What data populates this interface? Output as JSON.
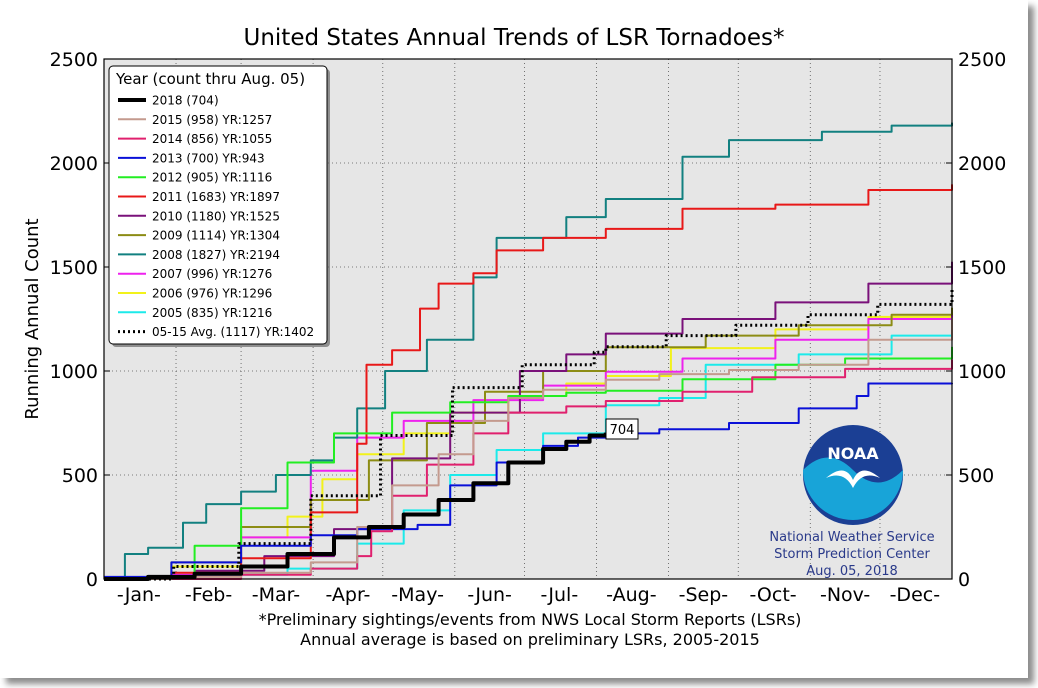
{
  "chart_data": {
    "type": "line",
    "title": "United States Annual Trends of LSR Tornadoes*",
    "ylabel": "Running Annual Count",
    "xlabel": "",
    "ylim": [
      0,
      2500
    ],
    "yticks": [
      0,
      500,
      1000,
      1500,
      2000,
      2500
    ],
    "x_unit": "day of year",
    "xlim": [
      1,
      366
    ],
    "month_ticks": [
      {
        "label": "-Jan-",
        "day": 16
      },
      {
        "label": "-Feb-",
        "day": 46
      },
      {
        "label": "-Mar-",
        "day": 75
      },
      {
        "label": "-Apr-",
        "day": 106
      },
      {
        "label": "-May-",
        "day": 136
      },
      {
        "label": "-Jun-",
        "day": 167
      },
      {
        "label": "-Jul-",
        "day": 197
      },
      {
        "label": "-Aug-",
        "day": 228
      },
      {
        "label": "-Sep-",
        "day": 259
      },
      {
        "label": "-Oct-",
        "day": 289
      },
      {
        "label": "-Nov-",
        "day": 320
      },
      {
        "label": "-Dec-",
        "day": 350
      }
    ],
    "month_gridlines_day": [
      32,
      60,
      91,
      121,
      152,
      182,
      213,
      244,
      274,
      305,
      335
    ],
    "grid": true,
    "legend": {
      "title": "Year (count thru Aug. 05)",
      "placement": "top-left"
    },
    "series": [
      {
        "name": "2018 (704)",
        "color": "#000000",
        "dash": "",
        "width": 4,
        "points": [
          [
            1,
            0
          ],
          [
            20,
            10
          ],
          [
            40,
            25
          ],
          [
            60,
            60
          ],
          [
            80,
            120
          ],
          [
            100,
            200
          ],
          [
            115,
            250
          ],
          [
            130,
            310
          ],
          [
            145,
            380
          ],
          [
            160,
            460
          ],
          [
            175,
            560
          ],
          [
            190,
            625
          ],
          [
            200,
            660
          ],
          [
            210,
            690
          ],
          [
            217,
            704
          ]
        ]
      },
      {
        "name": "2015 (958) YR:1257",
        "color": "#c49a8e",
        "dash": "",
        "width": 2,
        "points": [
          [
            1,
            0
          ],
          [
            30,
            10
          ],
          [
            60,
            30
          ],
          [
            90,
            80
          ],
          [
            110,
            250
          ],
          [
            125,
            450
          ],
          [
            145,
            600
          ],
          [
            160,
            760
          ],
          [
            175,
            870
          ],
          [
            190,
            910
          ],
          [
            217,
            958
          ],
          [
            240,
            985
          ],
          [
            270,
            1005
          ],
          [
            300,
            1030
          ],
          [
            330,
            1150
          ],
          [
            366,
            1257
          ]
        ]
      },
      {
        "name": "2014 (856) YR:1055",
        "color": "#e0206e",
        "dash": "",
        "width": 2,
        "points": [
          [
            1,
            0
          ],
          [
            60,
            20
          ],
          [
            90,
            50
          ],
          [
            110,
            110
          ],
          [
            116,
            230
          ],
          [
            125,
            400
          ],
          [
            140,
            550
          ],
          [
            160,
            700
          ],
          [
            175,
            800
          ],
          [
            200,
            830
          ],
          [
            217,
            856
          ],
          [
            250,
            900
          ],
          [
            280,
            970
          ],
          [
            320,
            1010
          ],
          [
            366,
            1055
          ]
        ]
      },
      {
        "name": "2013 (700) YR:943",
        "color": "#0a10d8",
        "dash": "",
        "width": 2,
        "points": [
          [
            1,
            10
          ],
          [
            30,
            80
          ],
          [
            60,
            160
          ],
          [
            90,
            210
          ],
          [
            110,
            240
          ],
          [
            136,
            260
          ],
          [
            150,
            450
          ],
          [
            170,
            560
          ],
          [
            190,
            640
          ],
          [
            205,
            680
          ],
          [
            217,
            700
          ],
          [
            240,
            720
          ],
          [
            270,
            750
          ],
          [
            300,
            820
          ],
          [
            325,
            880
          ],
          [
            330,
            940
          ],
          [
            366,
            943
          ]
        ]
      },
      {
        "name": "2012 (905) YR:1116",
        "color": "#22ee22",
        "dash": "",
        "width": 2,
        "points": [
          [
            1,
            0
          ],
          [
            40,
            160
          ],
          [
            60,
            340
          ],
          [
            80,
            560
          ],
          [
            100,
            700
          ],
          [
            125,
            800
          ],
          [
            150,
            850
          ],
          [
            175,
            880
          ],
          [
            200,
            895
          ],
          [
            217,
            905
          ],
          [
            250,
            960
          ],
          [
            290,
            1030
          ],
          [
            320,
            1060
          ],
          [
            366,
            1116
          ]
        ]
      },
      {
        "name": "2011 (1683) YR:1897",
        "color": "#e81818",
        "dash": "",
        "width": 2,
        "points": [
          [
            1,
            0
          ],
          [
            30,
            30
          ],
          [
            60,
            100
          ],
          [
            90,
            320
          ],
          [
            110,
            650
          ],
          [
            114,
            1030
          ],
          [
            125,
            1100
          ],
          [
            137,
            1300
          ],
          [
            145,
            1420
          ],
          [
            160,
            1470
          ],
          [
            170,
            1580
          ],
          [
            190,
            1640
          ],
          [
            217,
            1683
          ],
          [
            250,
            1780
          ],
          [
            290,
            1800
          ],
          [
            330,
            1870
          ],
          [
            366,
            1897
          ]
        ]
      },
      {
        "name": "2010 (1180) YR:1525",
        "color": "#7a117a",
        "dash": "",
        "width": 2,
        "points": [
          [
            1,
            0
          ],
          [
            40,
            40
          ],
          [
            70,
            110
          ],
          [
            100,
            240
          ],
          [
            125,
            580
          ],
          [
            150,
            800
          ],
          [
            180,
            1000
          ],
          [
            200,
            1080
          ],
          [
            217,
            1180
          ],
          [
            250,
            1250
          ],
          [
            290,
            1330
          ],
          [
            330,
            1420
          ],
          [
            366,
            1525
          ]
        ]
      },
      {
        "name": "2009 (1114) YR:1304",
        "color": "#8c8c14",
        "dash": "",
        "width": 2,
        "points": [
          [
            1,
            0
          ],
          [
            30,
            80
          ],
          [
            60,
            250
          ],
          [
            90,
            380
          ],
          [
            115,
            570
          ],
          [
            140,
            750
          ],
          [
            165,
            900
          ],
          [
            190,
            1000
          ],
          [
            217,
            1114
          ],
          [
            260,
            1170
          ],
          [
            300,
            1220
          ],
          [
            340,
            1270
          ],
          [
            366,
            1304
          ]
        ]
      },
      {
        "name": "2008 (1827) YR:2194",
        "color": "#128080",
        "dash": "",
        "width": 2,
        "points": [
          [
            1,
            0
          ],
          [
            10,
            120
          ],
          [
            20,
            150
          ],
          [
            35,
            270
          ],
          [
            45,
            360
          ],
          [
            60,
            420
          ],
          [
            75,
            500
          ],
          [
            90,
            570
          ],
          [
            100,
            680
          ],
          [
            110,
            820
          ],
          [
            122,
            1000
          ],
          [
            140,
            1150
          ],
          [
            160,
            1450
          ],
          [
            170,
            1640
          ],
          [
            200,
            1740
          ],
          [
            217,
            1827
          ],
          [
            250,
            2030
          ],
          [
            270,
            2110
          ],
          [
            310,
            2150
          ],
          [
            340,
            2180
          ],
          [
            366,
            2194
          ]
        ]
      },
      {
        "name": "2007 (996) YR:1276",
        "color": "#ee22ee",
        "dash": "",
        "width": 2,
        "points": [
          [
            1,
            0
          ],
          [
            30,
            20
          ],
          [
            60,
            200
          ],
          [
            90,
            520
          ],
          [
            110,
            680
          ],
          [
            130,
            760
          ],
          [
            160,
            860
          ],
          [
            190,
            930
          ],
          [
            217,
            996
          ],
          [
            250,
            1060
          ],
          [
            290,
            1150
          ],
          [
            330,
            1250
          ],
          [
            366,
            1276
          ]
        ]
      },
      {
        "name": "2006 (976) YR:1296",
        "color": "#f2f21a",
        "dash": "",
        "width": 2,
        "points": [
          [
            1,
            0
          ],
          [
            30,
            60
          ],
          [
            60,
            200
          ],
          [
            80,
            300
          ],
          [
            95,
            480
          ],
          [
            110,
            600
          ],
          [
            130,
            700
          ],
          [
            150,
            800
          ],
          [
            175,
            880
          ],
          [
            200,
            940
          ],
          [
            217,
            976
          ],
          [
            245,
            1110
          ],
          [
            290,
            1200
          ],
          [
            330,
            1260
          ],
          [
            366,
            1296
          ]
        ]
      },
      {
        "name": "2005 (835) YR:1216",
        "color": "#1ceaea",
        "dash": "",
        "width": 2,
        "points": [
          [
            1,
            0
          ],
          [
            40,
            20
          ],
          [
            80,
            50
          ],
          [
            110,
            170
          ],
          [
            130,
            330
          ],
          [
            150,
            500
          ],
          [
            170,
            620
          ],
          [
            190,
            700
          ],
          [
            217,
            835
          ],
          [
            240,
            870
          ],
          [
            260,
            1030
          ],
          [
            300,
            1080
          ],
          [
            340,
            1170
          ],
          [
            366,
            1216
          ]
        ]
      },
      {
        "name": "05-15 Avg. (1117) YR:1402",
        "color": "#000000",
        "dash": "2,3",
        "width": 3,
        "points": [
          [
            1,
            0
          ],
          [
            31,
            60
          ],
          [
            59,
            170
          ],
          [
            90,
            400
          ],
          [
            120,
            690
          ],
          [
            151,
            920
          ],
          [
            181,
            1030
          ],
          [
            212,
            1090
          ],
          [
            217,
            1117
          ],
          [
            243,
            1170
          ],
          [
            273,
            1220
          ],
          [
            304,
            1270
          ],
          [
            334,
            1320
          ],
          [
            366,
            1402
          ]
        ]
      }
    ],
    "annotation": {
      "text": "704",
      "x": 217,
      "y": 704
    },
    "footnotes": [
      "*Preliminary sightings/events from NWS Local Storm Reports (LSRs)",
      "Annual average is based on preliminary LSRs, 2005-2015"
    ],
    "credit": {
      "logo_text": "NOAA",
      "lines": [
        "National Weather Service",
        "Storm Prediction Center",
        "Aug. 05, 2018"
      ],
      "logo_color": "#1b3f94",
      "logo_accent": "#18a4d8"
    }
  }
}
